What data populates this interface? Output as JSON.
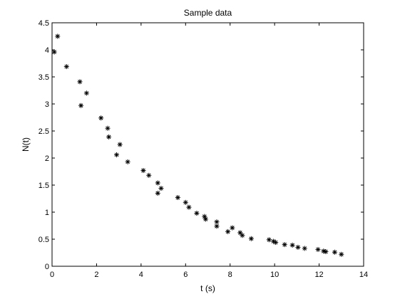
{
  "chart_data": {
    "type": "scatter",
    "title": "Sample data",
    "xlabel": "t (s)",
    "ylabel": "N(t)",
    "xlim": [
      0,
      14
    ],
    "ylim": [
      0,
      4.5
    ],
    "xticks": [
      0,
      2,
      4,
      6,
      8,
      10,
      12,
      14
    ],
    "xtick_labels": [
      "0",
      "2",
      "4",
      "6",
      "8",
      "10",
      "12",
      "14"
    ],
    "yticks": [
      0,
      0.5,
      1,
      1.5,
      2,
      2.5,
      3,
      3.5,
      4,
      4.5
    ],
    "ytick_labels": [
      "0",
      "0.5",
      "1",
      "1.5",
      "2",
      "2.5",
      "3",
      "3.5",
      "4",
      "4.5"
    ],
    "grid": false,
    "marker": "asterisk",
    "marker_color": "#000000",
    "series": [
      {
        "points": [
          [
            0.1,
            3.96
          ],
          [
            0.25,
            4.25
          ],
          [
            0.65,
            3.69
          ],
          [
            1.25,
            3.41
          ],
          [
            1.3,
            2.97
          ],
          [
            1.55,
            3.2
          ],
          [
            2.2,
            2.74
          ],
          [
            2.5,
            2.55
          ],
          [
            2.55,
            2.39
          ],
          [
            2.9,
            2.06
          ],
          [
            3.05,
            2.25
          ],
          [
            3.4,
            1.93
          ],
          [
            4.1,
            1.77
          ],
          [
            4.35,
            1.68
          ],
          [
            4.75,
            1.54
          ],
          [
            4.75,
            1.35
          ],
          [
            4.9,
            1.44
          ],
          [
            5.65,
            1.27
          ],
          [
            6.0,
            1.18
          ],
          [
            6.15,
            1.09
          ],
          [
            6.5,
            0.98
          ],
          [
            6.85,
            0.92
          ],
          [
            6.9,
            0.87
          ],
          [
            7.4,
            0.82
          ],
          [
            7.4,
            0.74
          ],
          [
            7.9,
            0.64
          ],
          [
            8.1,
            0.71
          ],
          [
            8.45,
            0.62
          ],
          [
            8.55,
            0.57
          ],
          [
            8.95,
            0.51
          ],
          [
            9.75,
            0.49
          ],
          [
            9.95,
            0.46
          ],
          [
            10.05,
            0.44
          ],
          [
            10.45,
            0.4
          ],
          [
            10.8,
            0.39
          ],
          [
            11.05,
            0.35
          ],
          [
            11.35,
            0.33
          ],
          [
            11.95,
            0.31
          ],
          [
            12.2,
            0.28
          ],
          [
            12.3,
            0.27
          ],
          [
            12.7,
            0.26
          ],
          [
            13.0,
            0.22
          ]
        ]
      }
    ]
  }
}
